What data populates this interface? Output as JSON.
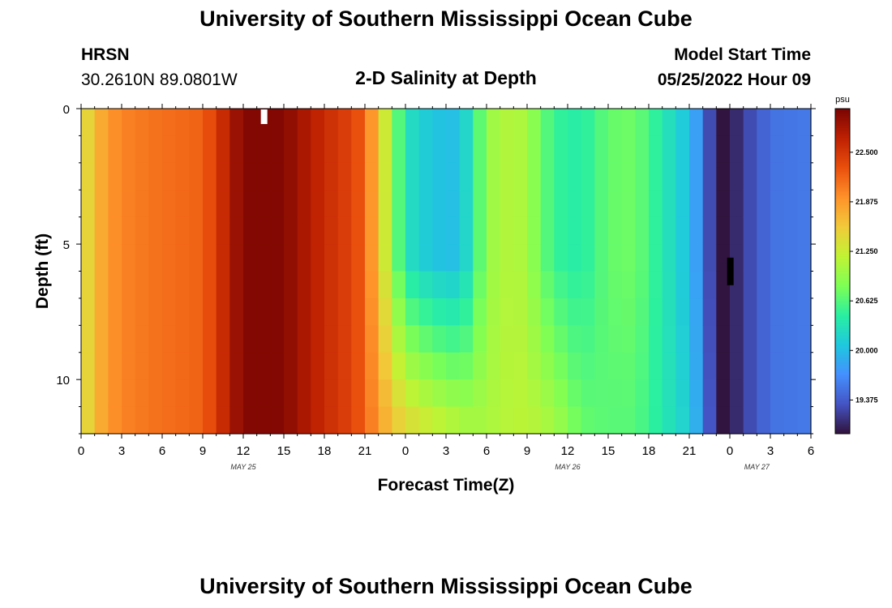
{
  "page": {
    "title_top": "University of Southern Mississippi Ocean Cube",
    "title_bottom": "University of Southern Mississippi Ocean Cube",
    "station_name": "HRSN",
    "station_coords": "30.2610N  89.0801W",
    "chart_title": "2-D Salinity at Depth",
    "model_label": "Model Start Time",
    "model_time": "05/25/2022 Hour 09"
  },
  "chart_data": {
    "type": "heatmap",
    "title": "2-D Salinity at Depth",
    "xlabel": "Forecast Time(Z)",
    "ylabel": "Depth (ft)",
    "colorbar_unit": "psu",
    "x_tick_labels": [
      "0",
      "3",
      "6",
      "9",
      "12",
      "15",
      "18",
      "21",
      "0",
      "3",
      "6",
      "9",
      "12",
      "15",
      "18",
      "21",
      "0",
      "3",
      "6"
    ],
    "date_labels": [
      "MAY 25",
      "MAY 26",
      "MAY 27"
    ],
    "y_ticks": [
      0,
      5,
      10
    ],
    "ylim": [
      0,
      12
    ],
    "x_range_hours": [
      0,
      54
    ],
    "colorbar_ticks": [
      "22.500",
      "21.875",
      "21.250",
      "20.625",
      "20.000",
      "19.375"
    ],
    "clim": [
      18.95,
      23.05
    ],
    "depth_layers": 12,
    "time_steps": 54,
    "profile_columns": [
      {
        "hour": 0,
        "surface": 21.3,
        "bottom": 21.3
      },
      {
        "hour": 1,
        "surface": 21.65,
        "bottom": 21.65
      },
      {
        "hour": 2,
        "surface": 21.9,
        "bottom": 21.9
      },
      {
        "hour": 3,
        "surface": 22.0,
        "bottom": 22.0
      },
      {
        "hour": 5,
        "surface": 22.1,
        "bottom": 22.1
      },
      {
        "hour": 7,
        "surface": 22.15,
        "bottom": 22.15
      },
      {
        "hour": 9,
        "surface": 22.2,
        "bottom": 22.2
      },
      {
        "hour": 10,
        "surface": 22.45,
        "bottom": 22.45
      },
      {
        "hour": 11,
        "surface": 22.75,
        "bottom": 22.75
      },
      {
        "hour": 12,
        "surface": 23.0,
        "bottom": 23.0
      },
      {
        "hour": 15,
        "surface": 23.0,
        "bottom": 23.0
      },
      {
        "hour": 16,
        "surface": 22.85,
        "bottom": 22.85
      },
      {
        "hour": 18,
        "surface": 22.6,
        "bottom": 22.6
      },
      {
        "hour": 20,
        "surface": 22.4,
        "bottom": 22.4
      },
      {
        "hour": 21,
        "surface": 22.2,
        "bottom": 22.2
      },
      {
        "hour": 22,
        "surface": 21.6,
        "bottom": 21.85
      },
      {
        "hour": 23,
        "surface": 20.95,
        "bottom": 21.6
      },
      {
        "hour": 24,
        "surface": 20.3,
        "bottom": 21.4
      },
      {
        "hour": 26,
        "surface": 20.05,
        "bottom": 21.2
      },
      {
        "hour": 28,
        "surface": 20.0,
        "bottom": 21.05
      },
      {
        "hour": 29,
        "surface": 20.4,
        "bottom": 21.0
      },
      {
        "hour": 30,
        "surface": 20.95,
        "bottom": 21.05
      },
      {
        "hour": 32,
        "surface": 21.15,
        "bottom": 21.15
      },
      {
        "hour": 33,
        "surface": 21.0,
        "bottom": 21.15
      },
      {
        "hour": 35,
        "surface": 20.5,
        "bottom": 21.0
      },
      {
        "hour": 37,
        "surface": 20.4,
        "bottom": 20.7
      },
      {
        "hour": 39,
        "surface": 20.7,
        "bottom": 20.65
      },
      {
        "hour": 41,
        "surface": 20.75,
        "bottom": 20.65
      },
      {
        "hour": 45,
        "surface": 20.0,
        "bottom": 20.1
      },
      {
        "hour": 46,
        "surface": 19.6,
        "bottom": 19.7
      },
      {
        "hour": 47,
        "surface": 18.95,
        "bottom": 18.95
      },
      {
        "hour": 48,
        "surface": 18.97,
        "bottom": 18.97
      },
      {
        "hour": 49,
        "surface": 19.2,
        "bottom": 19.2
      },
      {
        "hour": 51,
        "surface": 19.5,
        "bottom": 19.5
      },
      {
        "hour": 53,
        "surface": 19.55,
        "bottom": 19.55
      }
    ],
    "colormap": [
      "#30123b",
      "#4454c4",
      "#4490fe",
      "#1fc8de",
      "#29efa2",
      "#7eff55",
      "#c1f334",
      "#f1ca3a",
      "#fe922a",
      "#ea4f0d",
      "#be2102",
      "#7a0403"
    ]
  }
}
